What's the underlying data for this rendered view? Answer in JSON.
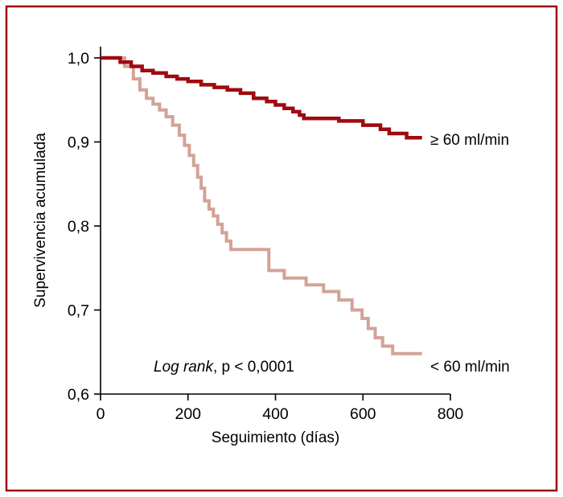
{
  "frame": {
    "border_color": "#9e0b0f",
    "background": "#ffffff"
  },
  "chart_data": {
    "type": "line",
    "variant": "kaplan_meier_step_survival",
    "title": "",
    "xlabel": "Seguimiento (días)",
    "ylabel": "Supervivencia acumulada",
    "xlim": [
      0,
      800
    ],
    "ylim": [
      0.6,
      1.0
    ],
    "grid": false,
    "legend_position": "curve-end-labels",
    "xticks": {
      "values": [
        0,
        200,
        400,
        600,
        800
      ],
      "labels": [
        "0",
        "200",
        "400",
        "600",
        "800"
      ]
    },
    "yticks": {
      "values": [
        0.6,
        0.7,
        0.8,
        0.9,
        1.0
      ],
      "labels": [
        "0,6",
        "0,7",
        "0,8",
        "0,9",
        "1,0"
      ]
    },
    "annotation": {
      "italic_part": "Log rank",
      "normal_part": ", p < 0,0001"
    },
    "series": [
      {
        "name": "≥ 60 ml/min",
        "color": "#9e0b0f",
        "stroke_width": 4.5,
        "points": [
          [
            0,
            1.0
          ],
          [
            45,
            0.995
          ],
          [
            70,
            0.99
          ],
          [
            95,
            0.985
          ],
          [
            120,
            0.982
          ],
          [
            150,
            0.978
          ],
          [
            175,
            0.975
          ],
          [
            200,
            0.972
          ],
          [
            230,
            0.968
          ],
          [
            260,
            0.965
          ],
          [
            290,
            0.962
          ],
          [
            320,
            0.958
          ],
          [
            350,
            0.952
          ],
          [
            380,
            0.948
          ],
          [
            400,
            0.944
          ],
          [
            420,
            0.94
          ],
          [
            440,
            0.936
          ],
          [
            455,
            0.932
          ],
          [
            465,
            0.928
          ],
          [
            545,
            0.925
          ],
          [
            600,
            0.92
          ],
          [
            640,
            0.915
          ],
          [
            660,
            0.91
          ],
          [
            700,
            0.905
          ],
          [
            735,
            0.905
          ]
        ]
      },
      {
        "name": "< 60 ml/min",
        "color": "#d3a398",
        "stroke_width": 4,
        "points": [
          [
            0,
            1.0
          ],
          [
            55,
            0.99
          ],
          [
            75,
            0.975
          ],
          [
            90,
            0.962
          ],
          [
            105,
            0.952
          ],
          [
            120,
            0.945
          ],
          [
            135,
            0.938
          ],
          [
            150,
            0.93
          ],
          [
            165,
            0.92
          ],
          [
            180,
            0.908
          ],
          [
            192,
            0.896
          ],
          [
            203,
            0.884
          ],
          [
            213,
            0.872
          ],
          [
            222,
            0.858
          ],
          [
            230,
            0.845
          ],
          [
            238,
            0.83
          ],
          [
            248,
            0.82
          ],
          [
            258,
            0.812
          ],
          [
            268,
            0.802
          ],
          [
            278,
            0.792
          ],
          [
            288,
            0.782
          ],
          [
            298,
            0.772
          ],
          [
            385,
            0.747
          ],
          [
            420,
            0.738
          ],
          [
            470,
            0.73
          ],
          [
            510,
            0.722
          ],
          [
            545,
            0.712
          ],
          [
            575,
            0.7
          ],
          [
            598,
            0.69
          ],
          [
            612,
            0.678
          ],
          [
            628,
            0.667
          ],
          [
            645,
            0.657
          ],
          [
            668,
            0.648
          ],
          [
            735,
            0.648
          ]
        ]
      }
    ]
  }
}
